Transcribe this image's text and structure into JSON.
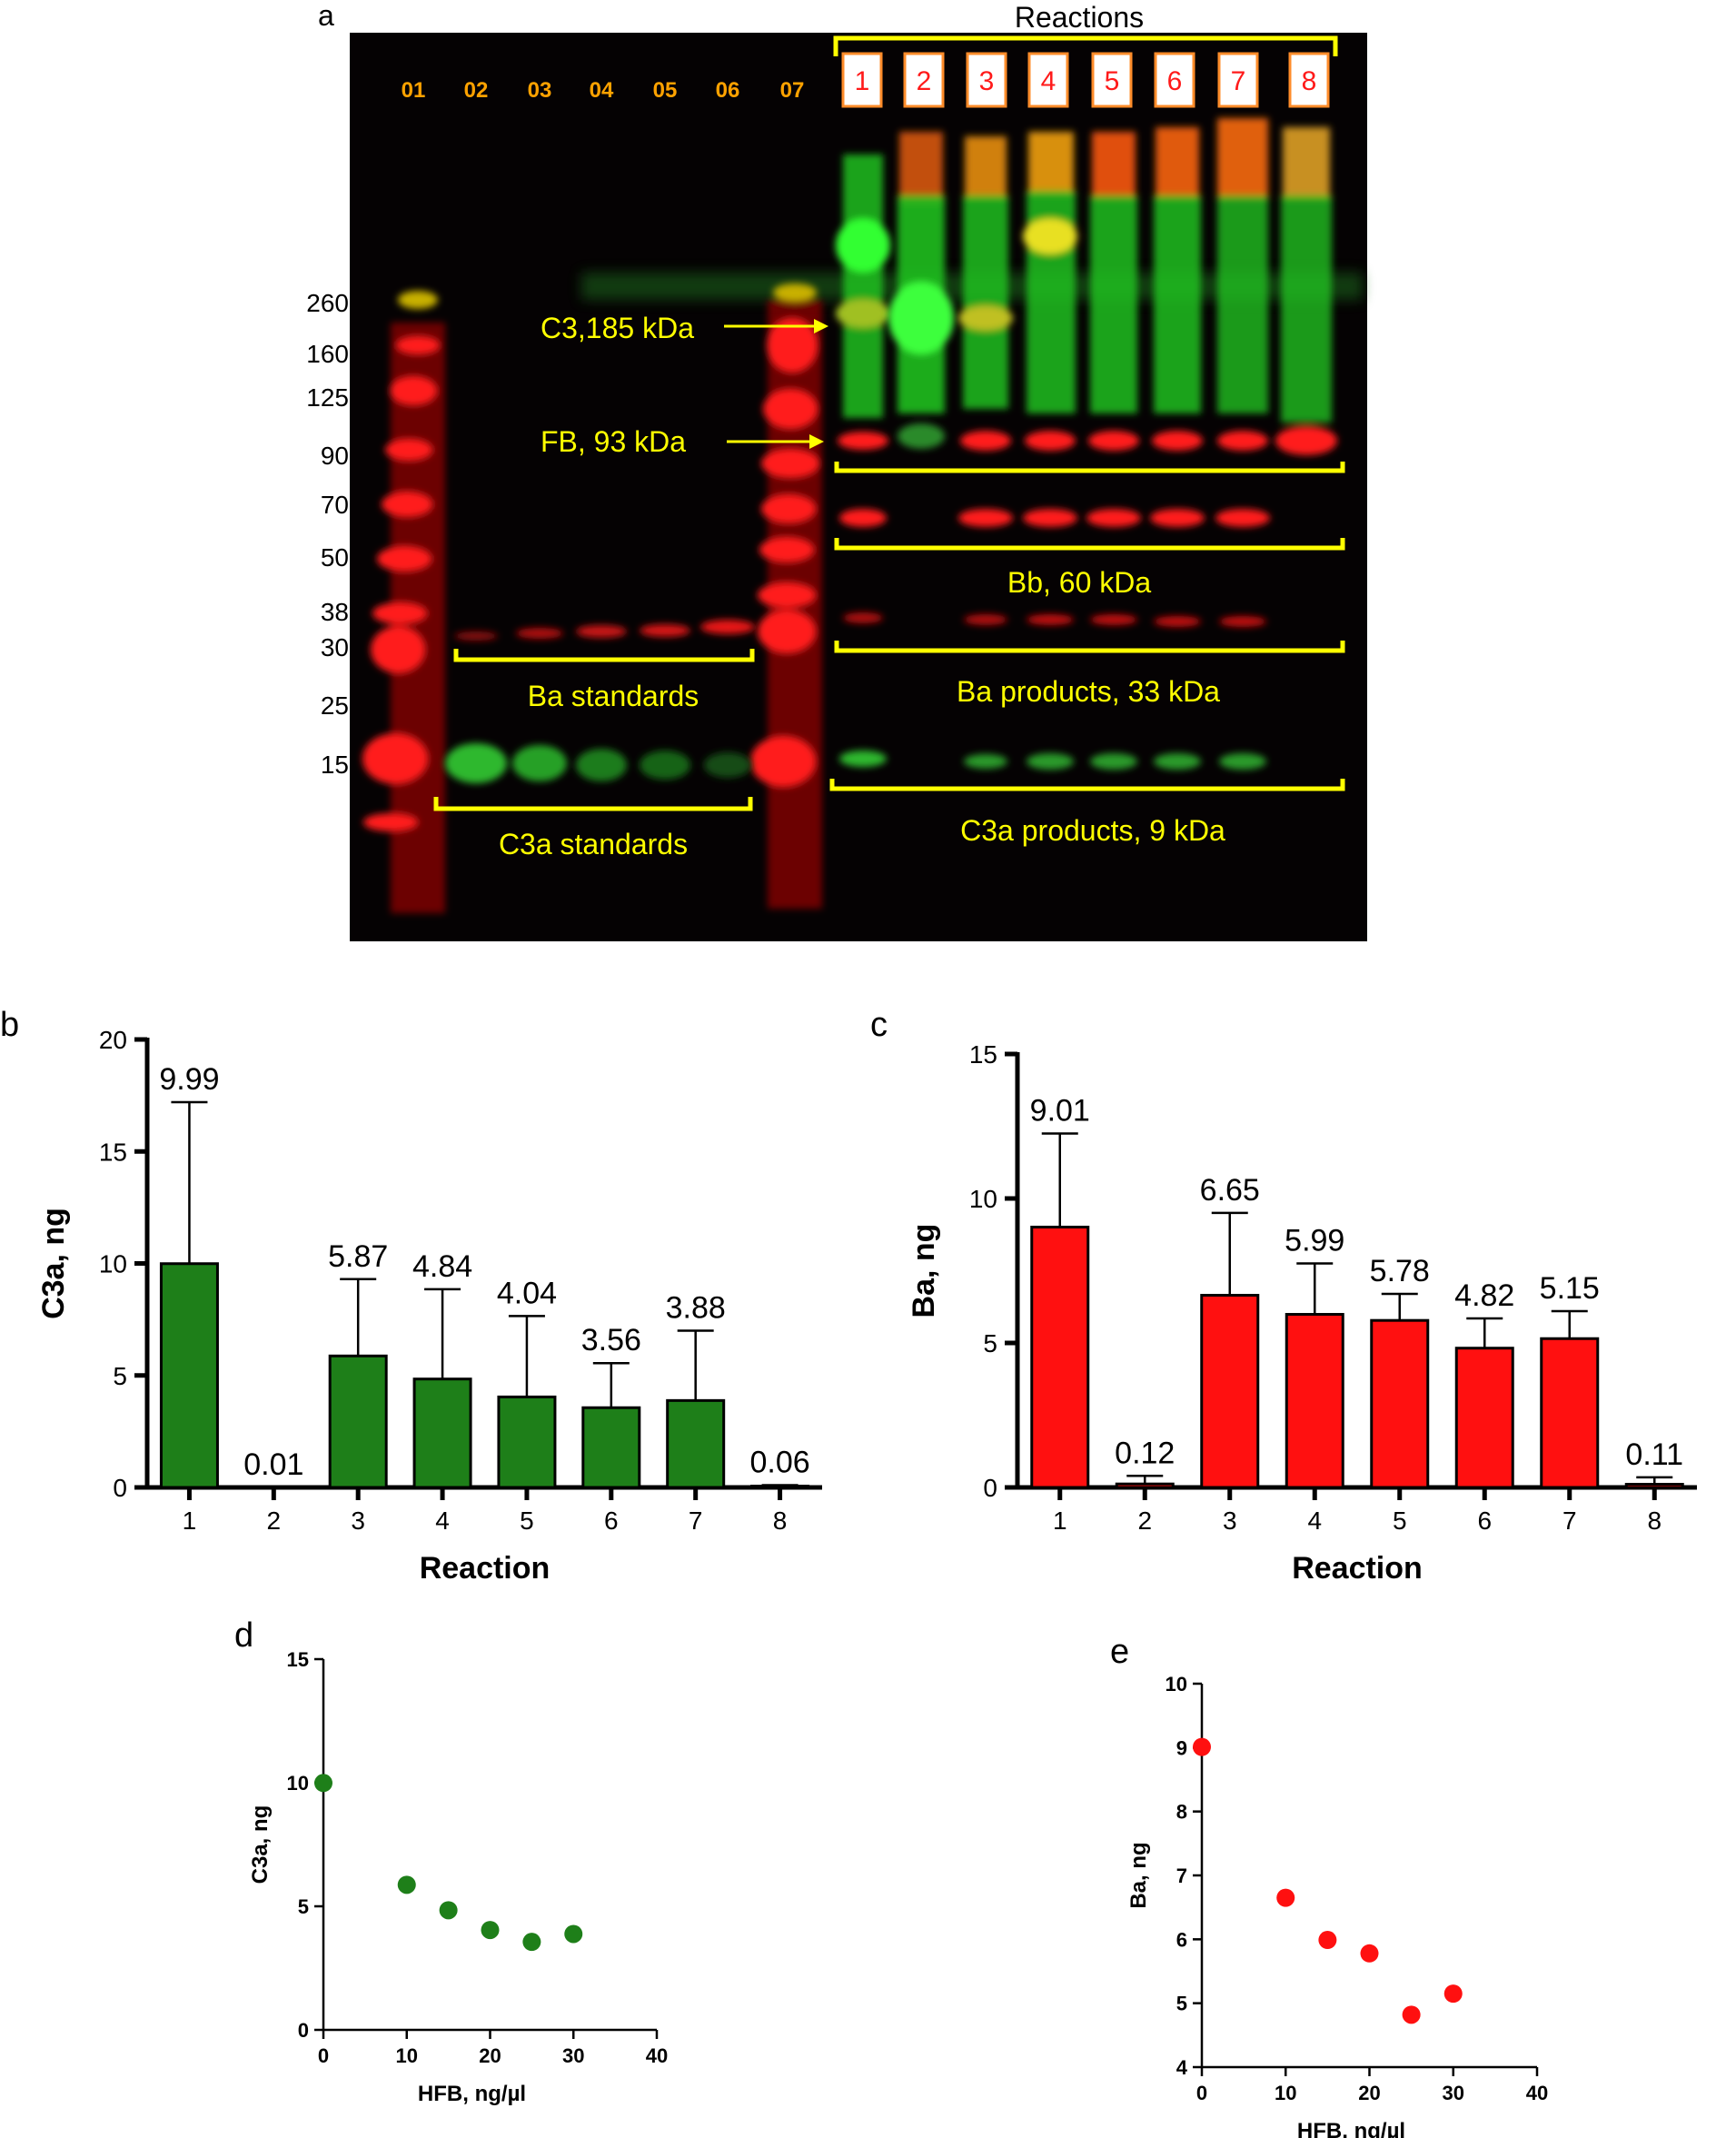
{
  "panel_labels": {
    "a": "a",
    "b": "b",
    "c": "c",
    "d": "d",
    "e": "e"
  },
  "colors": {
    "gel_bg": "#050203",
    "gel_red": "#ff1a1a",
    "gel_green": "#33ff33",
    "annotation_yellow": "#ffff00",
    "lane_number_orange": "#ffa200",
    "reaction_box_red": "#ff1a1a",
    "bar_green": "#1e7f19",
    "bar_red": "#ff1010",
    "axis": "#000000"
  },
  "gel": {
    "reactions_title": "Reactions",
    "ladder_lanes": [
      "01",
      "02",
      "03",
      "04",
      "05",
      "06",
      "07"
    ],
    "reaction_lanes": [
      "1",
      "2",
      "3",
      "4",
      "5",
      "6",
      "7",
      "8"
    ],
    "mw_markers": [
      "260",
      "160",
      "125",
      "90",
      "70",
      "50",
      "38",
      "30",
      "25",
      "15"
    ],
    "annotations": {
      "c3": "C3,185 kDa",
      "fb": "FB, 93 kDa",
      "bb": "Bb, 60 kDa",
      "ba_standards": "Ba standards",
      "ba_products": "Ba products, 33 kDa",
      "c3a_standards": "C3a standards",
      "c3a_products": "C3a products, 9 kDa"
    }
  },
  "chart_data": [
    {
      "id": "b",
      "type": "bar",
      "categories": [
        "1",
        "2",
        "3",
        "4",
        "5",
        "6",
        "7",
        "8"
      ],
      "values": [
        9.99,
        0.01,
        5.87,
        4.84,
        4.04,
        3.56,
        3.88,
        0.06
      ],
      "value_labels": [
        "9.99",
        "0.01",
        "5.87",
        "4.84",
        "4.04",
        "3.56",
        "3.88",
        "0.06"
      ],
      "error_upper": [
        17.2,
        0.01,
        9.3,
        8.85,
        7.65,
        5.55,
        7.0,
        0.1
      ],
      "xlabel": "Reaction",
      "ylabel": "C3a, ng",
      "ylim": [
        0,
        20
      ],
      "yticks": [
        "0",
        "5",
        "10",
        "15",
        "20"
      ],
      "color": "#1e7f19"
    },
    {
      "id": "c",
      "type": "bar",
      "categories": [
        "1",
        "2",
        "3",
        "4",
        "5",
        "6",
        "7",
        "8"
      ],
      "values": [
        9.01,
        0.12,
        6.65,
        5.99,
        5.78,
        4.82,
        5.15,
        0.11
      ],
      "value_labels": [
        "9.01",
        "0.12",
        "6.65",
        "5.99",
        "5.78",
        "4.82",
        "5.15",
        "0.11"
      ],
      "error_upper": [
        12.25,
        0.4,
        9.5,
        7.75,
        6.7,
        5.85,
        6.1,
        0.35
      ],
      "xlabel": "Reaction",
      "ylabel": "Ba, ng",
      "ylim": [
        0,
        15
      ],
      "yticks": [
        "0",
        "5",
        "10",
        "15"
      ],
      "color": "#ff1010"
    },
    {
      "id": "d",
      "type": "scatter",
      "x": [
        0,
        10,
        15,
        20,
        25,
        30
      ],
      "y": [
        9.99,
        5.87,
        4.84,
        4.04,
        3.56,
        3.88
      ],
      "xlabel": "HFB, ng/µl",
      "ylabel": "C3a, ng",
      "xlim": [
        0,
        40
      ],
      "ylim": [
        0,
        15
      ],
      "xticks": [
        "0",
        "10",
        "20",
        "30",
        "40"
      ],
      "yticks": [
        "0",
        "5",
        "10",
        "15"
      ],
      "color": "#1e7f19"
    },
    {
      "id": "e",
      "type": "scatter",
      "x": [
        0,
        10,
        15,
        20,
        25,
        30
      ],
      "y": [
        9.01,
        6.65,
        5.99,
        5.78,
        4.82,
        5.15
      ],
      "xlabel": "HFB, ng/µl",
      "ylabel": "Ba, ng",
      "xlim": [
        0,
        40
      ],
      "ylim": [
        4,
        10
      ],
      "xticks": [
        "0",
        "10",
        "20",
        "30",
        "40"
      ],
      "yticks": [
        "4",
        "5",
        "6",
        "7",
        "8",
        "9",
        "10"
      ],
      "color": "#ff1010"
    }
  ]
}
